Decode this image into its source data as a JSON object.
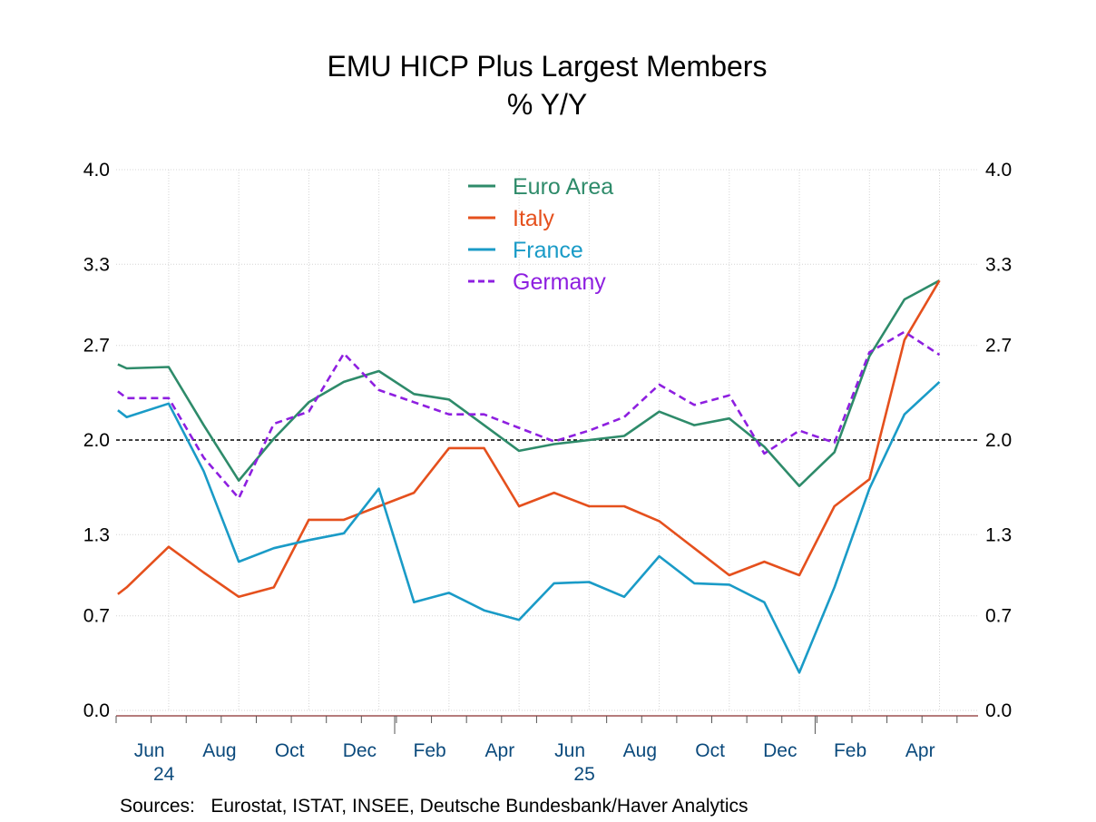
{
  "chart_data": {
    "type": "line",
    "title": "EMU HICP Plus Largest Members",
    "subtitle": "% Y/Y",
    "source": "Sources:   Eurostat, ISTAT, INSEE, Deutsche Bundesbank/Haver Analytics",
    "ylim": [
      0.0,
      4.0
    ],
    "y_ticks": [
      "0.0",
      "0.7",
      "1.3",
      "2.0",
      "2.7",
      "3.3",
      "4.0"
    ],
    "reference_line": 2.0,
    "grid": true,
    "legend_position": "top-center",
    "x": [
      "May 2024",
      "Jun 2024",
      "Jul 2024",
      "Aug 2024",
      "Sep 2024",
      "Oct 2024",
      "Nov 2024",
      "Dec 2024",
      "Jan 2025",
      "Feb 2025",
      "Mar 2025",
      "Apr 2025",
      "May 2025",
      "Jun 2025",
      "Jul 2025",
      "Aug 2025",
      "Sep 2025",
      "Oct 2025",
      "Nov 2025",
      "Dec 2025",
      "Jan 2026",
      "Feb 2026",
      "Mar 2026",
      "Apr 2026",
      "May 2026"
    ],
    "x_tick_labels": [
      {
        "month": "Jun",
        "year": "24",
        "index": 1
      },
      {
        "month": "Aug",
        "year": "",
        "index": 3
      },
      {
        "month": "Oct",
        "year": "",
        "index": 5
      },
      {
        "month": "Dec",
        "year": "",
        "index": 7
      },
      {
        "month": "Feb",
        "year": "",
        "index": 9
      },
      {
        "month": "Apr",
        "year": "",
        "index": 11
      },
      {
        "month": "Jun",
        "year": "25",
        "index": 13
      },
      {
        "month": "Aug",
        "year": "",
        "index": 15
      },
      {
        "month": "Oct",
        "year": "",
        "index": 17
      },
      {
        "month": "Dec",
        "year": "",
        "index": 19
      },
      {
        "month": "Feb",
        "year": "",
        "index": 21
      },
      {
        "month": "Apr",
        "year": "",
        "index": 23
      }
    ],
    "series": [
      {
        "name": "Euro Area",
        "color": "#2e8b6a",
        "dash": false,
        "values": [
          2.6,
          2.5,
          2.6,
          2.2,
          1.7,
          2.0,
          2.2,
          2.4,
          2.5,
          2.3,
          2.2,
          2.2,
          1.9,
          1.9,
          2.0,
          2.0,
          2.2,
          2.1,
          2.1,
          1.9,
          1.7,
          2.0,
          2.6,
          3.0,
          3.2
        ],
        "points": [
          [
            0,
            2.56
          ],
          [
            0.25,
            2.53
          ],
          [
            1.45,
            2.54
          ],
          [
            2.45,
            2.11
          ],
          [
            3.45,
            1.7
          ],
          [
            4.45,
            2.01
          ],
          [
            5.45,
            2.28
          ],
          [
            6.45,
            2.43
          ],
          [
            7.45,
            2.51
          ],
          [
            8.45,
            2.34
          ],
          [
            9.45,
            2.3
          ],
          [
            10.45,
            2.11
          ],
          [
            11.45,
            1.92
          ],
          [
            12.45,
            1.97
          ],
          [
            13.45,
            2.0
          ],
          [
            14.45,
            2.03
          ],
          [
            15.45,
            2.21
          ],
          [
            16.45,
            2.11
          ],
          [
            17.45,
            2.16
          ],
          [
            18.45,
            1.95
          ],
          [
            19.45,
            1.66
          ],
          [
            20.45,
            1.91
          ],
          [
            21.45,
            2.62
          ],
          [
            22.45,
            3.04
          ],
          [
            23.45,
            3.18
          ]
        ]
      },
      {
        "name": "Italy",
        "color": "#e5501d",
        "dash": false,
        "values": [
          0.8,
          0.9,
          1.2,
          1.0,
          0.8,
          0.9,
          1.4,
          1.4,
          1.5,
          1.6,
          1.9,
          1.9,
          1.5,
          1.6,
          1.5,
          1.5,
          1.4,
          1.2,
          1.0,
          1.1,
          1.0,
          1.5,
          1.7,
          2.7,
          3.2
        ],
        "points": [
          [
            0,
            0.86
          ],
          [
            0.25,
            0.91
          ],
          [
            1.45,
            1.21
          ],
          [
            2.45,
            1.02
          ],
          [
            3.45,
            0.84
          ],
          [
            4.45,
            0.91
          ],
          [
            5.45,
            1.41
          ],
          [
            6.45,
            1.41
          ],
          [
            7.45,
            1.51
          ],
          [
            8.45,
            1.61
          ],
          [
            9.45,
            1.94
          ],
          [
            10.45,
            1.94
          ],
          [
            11.45,
            1.51
          ],
          [
            12.45,
            1.61
          ],
          [
            13.45,
            1.51
          ],
          [
            14.45,
            1.51
          ],
          [
            15.45,
            1.4
          ],
          [
            16.45,
            1.2
          ],
          [
            17.45,
            1.0
          ],
          [
            18.45,
            1.1
          ],
          [
            19.45,
            1.0
          ],
          [
            20.45,
            1.51
          ],
          [
            21.45,
            1.71
          ],
          [
            22.45,
            2.74
          ],
          [
            23.45,
            3.18
          ]
        ]
      },
      {
        "name": "France",
        "color": "#1a9bc7",
        "dash": false,
        "values": [
          2.2,
          2.2,
          2.2,
          1.8,
          1.1,
          1.2,
          1.3,
          1.3,
          1.7,
          0.8,
          0.9,
          0.8,
          0.7,
          1.0,
          1.0,
          0.9,
          1.1,
          1.0,
          0.9,
          0.8,
          0.3,
          0.9,
          1.6,
          2.2,
          2.4
        ],
        "points": [
          [
            0,
            2.22
          ],
          [
            0.25,
            2.17
          ],
          [
            1.45,
            2.27
          ],
          [
            2.45,
            1.77
          ],
          [
            3.45,
            1.1
          ],
          [
            4.45,
            1.2
          ],
          [
            5.45,
            1.26
          ],
          [
            6.45,
            1.31
          ],
          [
            7.45,
            1.64
          ],
          [
            8.45,
            0.8
          ],
          [
            9.45,
            0.87
          ],
          [
            10.45,
            0.74
          ],
          [
            11.45,
            0.67
          ],
          [
            12.45,
            0.94
          ],
          [
            13.45,
            0.95
          ],
          [
            14.45,
            0.84
          ],
          [
            15.45,
            1.14
          ],
          [
            16.45,
            0.94
          ],
          [
            17.45,
            0.93
          ],
          [
            18.45,
            0.8
          ],
          [
            19.45,
            0.28
          ],
          [
            20.45,
            0.91
          ],
          [
            21.45,
            1.64
          ],
          [
            22.45,
            2.19
          ],
          [
            23.45,
            2.43
          ]
        ]
      },
      {
        "name": "Germany",
        "color": "#8e1fe0",
        "dash": true,
        "values": [
          2.4,
          2.3,
          2.3,
          1.9,
          1.6,
          2.1,
          2.2,
          2.7,
          2.4,
          2.3,
          2.2,
          2.2,
          2.1,
          2.0,
          2.1,
          2.2,
          2.4,
          2.3,
          2.3,
          1.9,
          2.1,
          2.0,
          2.7,
          2.8,
          2.6
        ],
        "points": [
          [
            0,
            2.36
          ],
          [
            0.25,
            2.31
          ],
          [
            1.45,
            2.31
          ],
          [
            2.45,
            1.87
          ],
          [
            3.45,
            1.57
          ],
          [
            4.45,
            2.12
          ],
          [
            5.45,
            2.21
          ],
          [
            6.45,
            2.64
          ],
          [
            7.45,
            2.37
          ],
          [
            8.45,
            2.28
          ],
          [
            9.45,
            2.19
          ],
          [
            10.45,
            2.19
          ],
          [
            11.45,
            2.09
          ],
          [
            12.45,
            1.99
          ],
          [
            13.45,
            2.07
          ],
          [
            14.45,
            2.17
          ],
          [
            15.45,
            2.41
          ],
          [
            16.45,
            2.26
          ],
          [
            17.45,
            2.33
          ],
          [
            18.45,
            1.9
          ],
          [
            19.45,
            2.07
          ],
          [
            20.45,
            1.98
          ],
          [
            21.45,
            2.65
          ],
          [
            22.45,
            2.8
          ],
          [
            23.45,
            2.63
          ]
        ]
      }
    ]
  }
}
